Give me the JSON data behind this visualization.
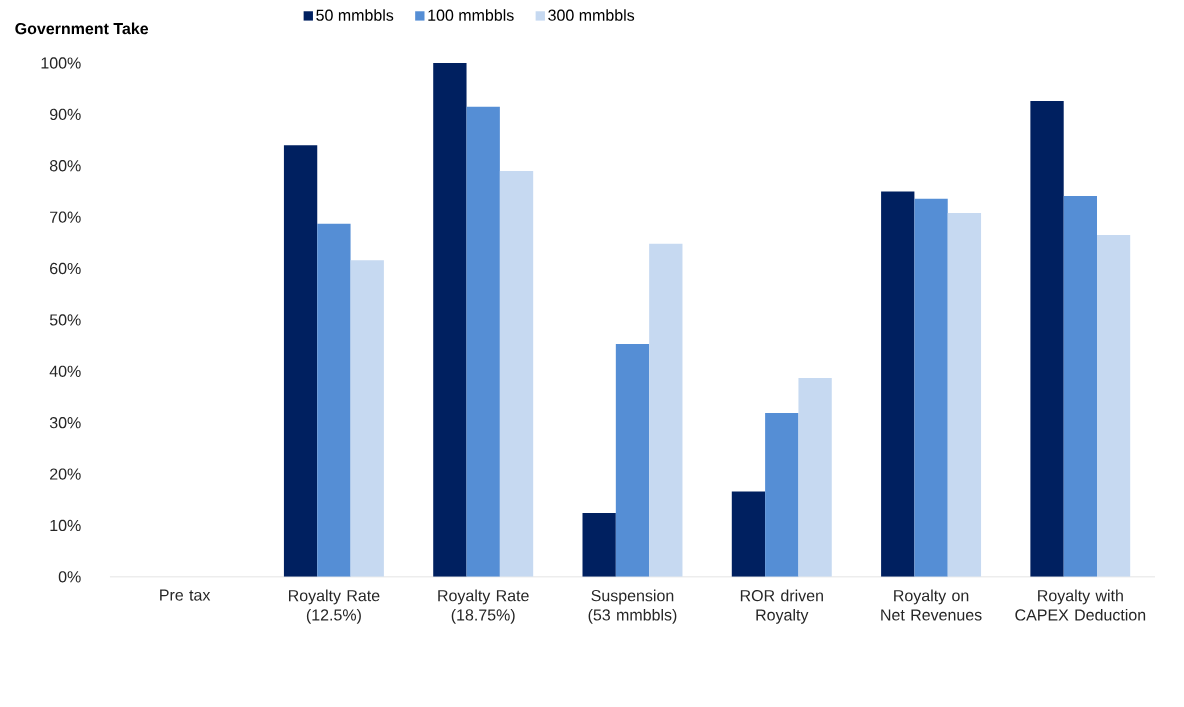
{
  "chart_data": {
    "type": "bar",
    "ylabel": "Government Take",
    "categories": [
      "Pre tax",
      "Royalty Rate (12.5%)",
      "Royalty Rate (18.75%)",
      "Suspension (53 mmbbls)",
      "ROR driven Royalty",
      "Royalty on Net Revenues",
      "Royalty with CAPEX Deduction"
    ],
    "series": [
      {
        "name": "50 mmbbls",
        "color": "#002060",
        "values": [
          0,
          84,
          100,
          12.4,
          16.6,
          75,
          92.6
        ]
      },
      {
        "name": "100 mmbbls",
        "color": "#558ed5",
        "values": [
          0,
          68.7,
          91.5,
          45.3,
          31.9,
          73.6,
          74.1
        ]
      },
      {
        "name": "300 mmbbls",
        "color": "#c6d9f1",
        "values": [
          0,
          61.6,
          79,
          64.8,
          38.7,
          70.8,
          66.5
        ]
      }
    ],
    "ylim": [
      0,
      100
    ],
    "yticks": [
      {
        "value": 0,
        "label": "0%"
      },
      {
        "value": 10,
        "label": "10%"
      },
      {
        "value": 20,
        "label": "20%"
      },
      {
        "value": 30,
        "label": "30%"
      },
      {
        "value": 40,
        "label": "40%"
      },
      {
        "value": 50,
        "label": "50%"
      },
      {
        "value": 60,
        "label": "60%"
      },
      {
        "value": 70,
        "label": "70%"
      },
      {
        "value": 80,
        "label": "80%"
      },
      {
        "value": 90,
        "label": "90%"
      },
      {
        "value": 100,
        "label": "100%"
      }
    ],
    "grid": false,
    "legend": "top"
  }
}
